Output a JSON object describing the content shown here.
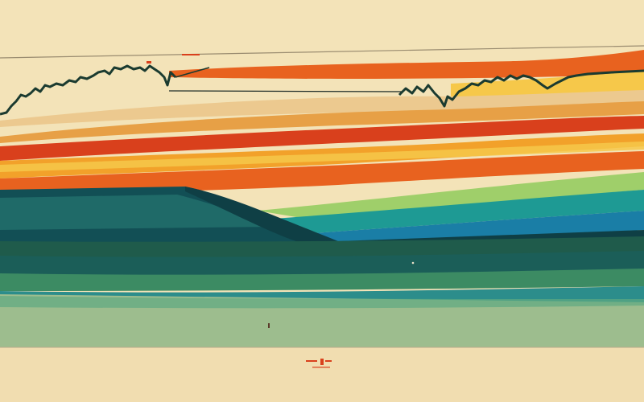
{
  "palette": {
    "background": "#f3e3b8",
    "cream": "#f1ddb0",
    "sand": "#eccf97",
    "orange": "#e8621f",
    "red_orange": "#d9401c",
    "amber": "#f2a12a",
    "yellow": "#f6c84a",
    "lime": "#9fcf6a",
    "teal": "#1e9a94",
    "blue": "#1a7ea6",
    "deep_teal": "#124f55",
    "dark_green": "#1f5b4b",
    "green": "#3c8b63",
    "sage": "#9dbd8e",
    "pale_sage": "#b5c99a",
    "ink": "#1b2a26"
  },
  "elements": {
    "stock_line": "stock-line",
    "bands": "color-bands"
  }
}
